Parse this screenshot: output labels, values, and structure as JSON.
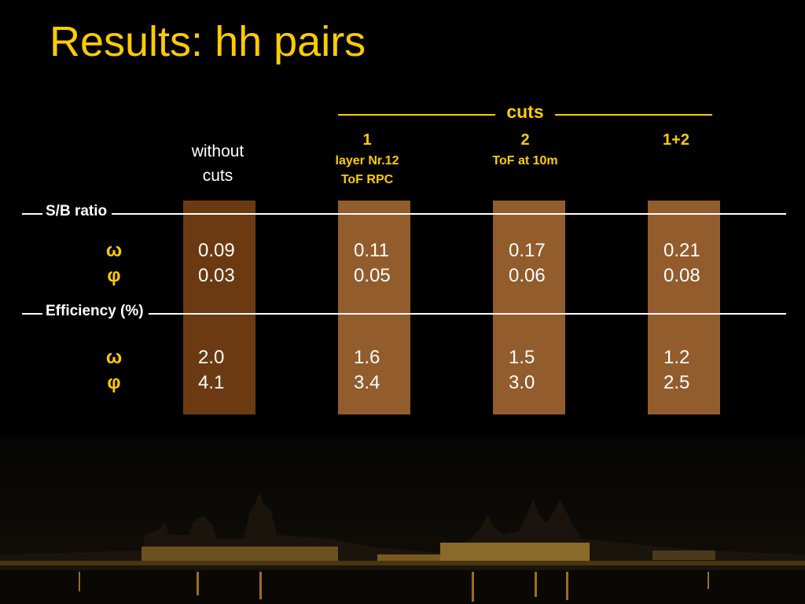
{
  "title": "Results: hh pairs",
  "cuts_header": "cuts",
  "columns": [
    {
      "label": "without cuts"
    },
    {
      "label": "1",
      "details": [
        "layer Nr.12",
        "ToF RPC"
      ]
    },
    {
      "label": "2",
      "details": [
        "ToF at 10m"
      ]
    },
    {
      "label": "1+2"
    }
  ],
  "sections": [
    {
      "title": "S/B ratio",
      "rows": [
        {
          "label": "ω",
          "values": [
            "0.09",
            "0.11",
            "0.17",
            "0.21"
          ]
        },
        {
          "label": "φ",
          "values": [
            "0.03",
            "0.05",
            "0.06",
            "0.08"
          ]
        }
      ]
    },
    {
      "title": "Efficiency (%)",
      "rows": [
        {
          "label": "ω",
          "values": [
            "2.0",
            "1.6",
            "1.5",
            "1.2"
          ]
        },
        {
          "label": "φ",
          "values": [
            "4.1",
            "3.4",
            "3.0",
            "2.5"
          ]
        }
      ]
    }
  ]
}
